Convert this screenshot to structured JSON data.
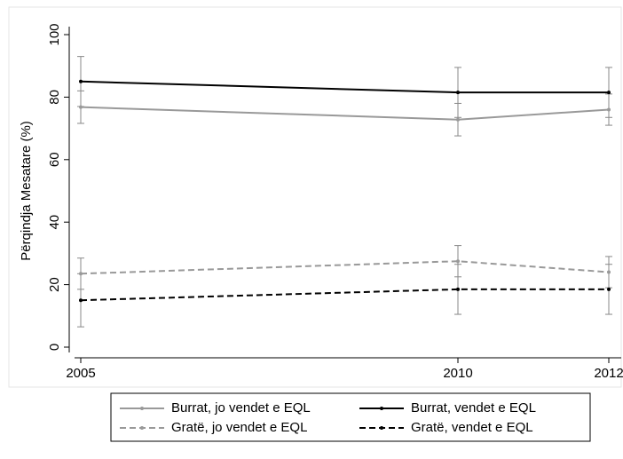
{
  "chart_data": {
    "type": "line",
    "y_label": "Përqindja Mesatare (%)",
    "x": [
      2005,
      2010,
      2012
    ],
    "xlim": [
      2005,
      2012
    ],
    "xticks": [
      2005,
      2010,
      2012
    ],
    "ylim": [
      0,
      100
    ],
    "yticks": [
      0,
      20,
      40,
      60,
      80,
      100
    ],
    "series": [
      {
        "name": "Burrat, jo vendet e EQL",
        "color": "#999999",
        "dash": false,
        "values": [
          76.8,
          72.8,
          76.0
        ],
        "errors": [
          5.2,
          5.2,
          5.0
        ]
      },
      {
        "name": "Burrat, vendet e EQL",
        "color": "#000000",
        "dash": false,
        "values": [
          85.0,
          81.5,
          81.5
        ],
        "errors": [
          8.0,
          8.0,
          8.0
        ]
      },
      {
        "name": "Gratë, jo vendet e EQL",
        "color": "#999999",
        "dash": true,
        "values": [
          23.5,
          27.5,
          24.0
        ],
        "errors": [
          5.0,
          5.0,
          5.0
        ]
      },
      {
        "name": "Gratë, vendet e EQL",
        "color": "#000000",
        "dash": true,
        "values": [
          15.0,
          18.5,
          18.5
        ],
        "errors": [
          8.5,
          8.0,
          8.0
        ]
      }
    ]
  }
}
